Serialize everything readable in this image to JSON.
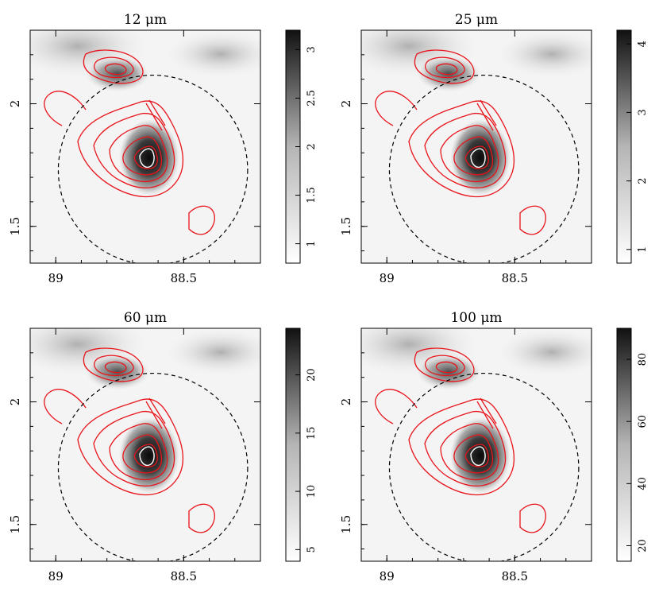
{
  "figure": {
    "panels": [
      {
        "id": "p12",
        "title": "12 μm",
        "x_ticks": [
          "89",
          "88.5"
        ],
        "y_ticks": [
          "2",
          "1.5"
        ],
        "colorbar_ticks": [
          "1",
          "1.5",
          "2",
          "2.5",
          "3"
        ]
      },
      {
        "id": "p25",
        "title": "25 μm",
        "x_ticks": [
          "89",
          "88.5"
        ],
        "y_ticks": [
          "2",
          "1.5"
        ],
        "colorbar_ticks": [
          "1",
          "2",
          "3",
          "4"
        ]
      },
      {
        "id": "p60",
        "title": "60 μm",
        "x_ticks": [
          "89",
          "88.5"
        ],
        "y_ticks": [
          "2",
          "1.5"
        ],
        "colorbar_ticks": [
          "5",
          "10",
          "15",
          "20"
        ]
      },
      {
        "id": "p100",
        "title": "100 μm",
        "x_ticks": [
          "89",
          "88.5"
        ],
        "y_ticks": [
          "2",
          "1.5"
        ],
        "colorbar_ticks": [
          "20",
          "40",
          "60",
          "80"
        ]
      }
    ]
  },
  "chart_data": [
    {
      "type": "heatmap",
      "title": "12 μm",
      "xlabel": "",
      "ylabel": "",
      "x_ticks": [
        89,
        88.5
      ],
      "y_ticks": [
        2,
        1.5
      ],
      "xlim": [
        89.1,
        88.2
      ],
      "ylim": [
        1.35,
        2.3
      ],
      "colorbar": {
        "ticks": [
          1,
          1.5,
          2,
          2.5,
          3
        ],
        "range": [
          0.8,
          3.2
        ]
      },
      "overlay": "red contours, dashed circle"
    },
    {
      "type": "heatmap",
      "title": "25 μm",
      "xlabel": "",
      "ylabel": "",
      "x_ticks": [
        89,
        88.5
      ],
      "y_ticks": [
        2,
        1.5
      ],
      "xlim": [
        89.1,
        88.2
      ],
      "ylim": [
        1.35,
        2.3
      ],
      "colorbar": {
        "ticks": [
          1,
          2,
          3,
          4
        ],
        "range": [
          0.8,
          4.2
        ]
      },
      "overlay": "red contours, dashed circle"
    },
    {
      "type": "heatmap",
      "title": "60 μm",
      "xlabel": "",
      "ylabel": "",
      "x_ticks": [
        89,
        88.5
      ],
      "y_ticks": [
        2,
        1.5
      ],
      "xlim": [
        89.1,
        88.2
      ],
      "ylim": [
        1.35,
        2.3
      ],
      "colorbar": {
        "ticks": [
          5,
          10,
          15,
          20
        ],
        "range": [
          4,
          24
        ]
      },
      "overlay": "red contours, dashed circle"
    },
    {
      "type": "heatmap",
      "title": "100 μm",
      "xlabel": "",
      "ylabel": "",
      "x_ticks": [
        89,
        88.5
      ],
      "y_ticks": [
        2,
        1.5
      ],
      "xlim": [
        89.1,
        88.2
      ],
      "ylim": [
        1.35,
        2.3
      ],
      "colorbar": {
        "ticks": [
          20,
          40,
          60,
          80
        ],
        "range": [
          15,
          90
        ]
      },
      "overlay": "red contours, dashed circle"
    }
  ]
}
